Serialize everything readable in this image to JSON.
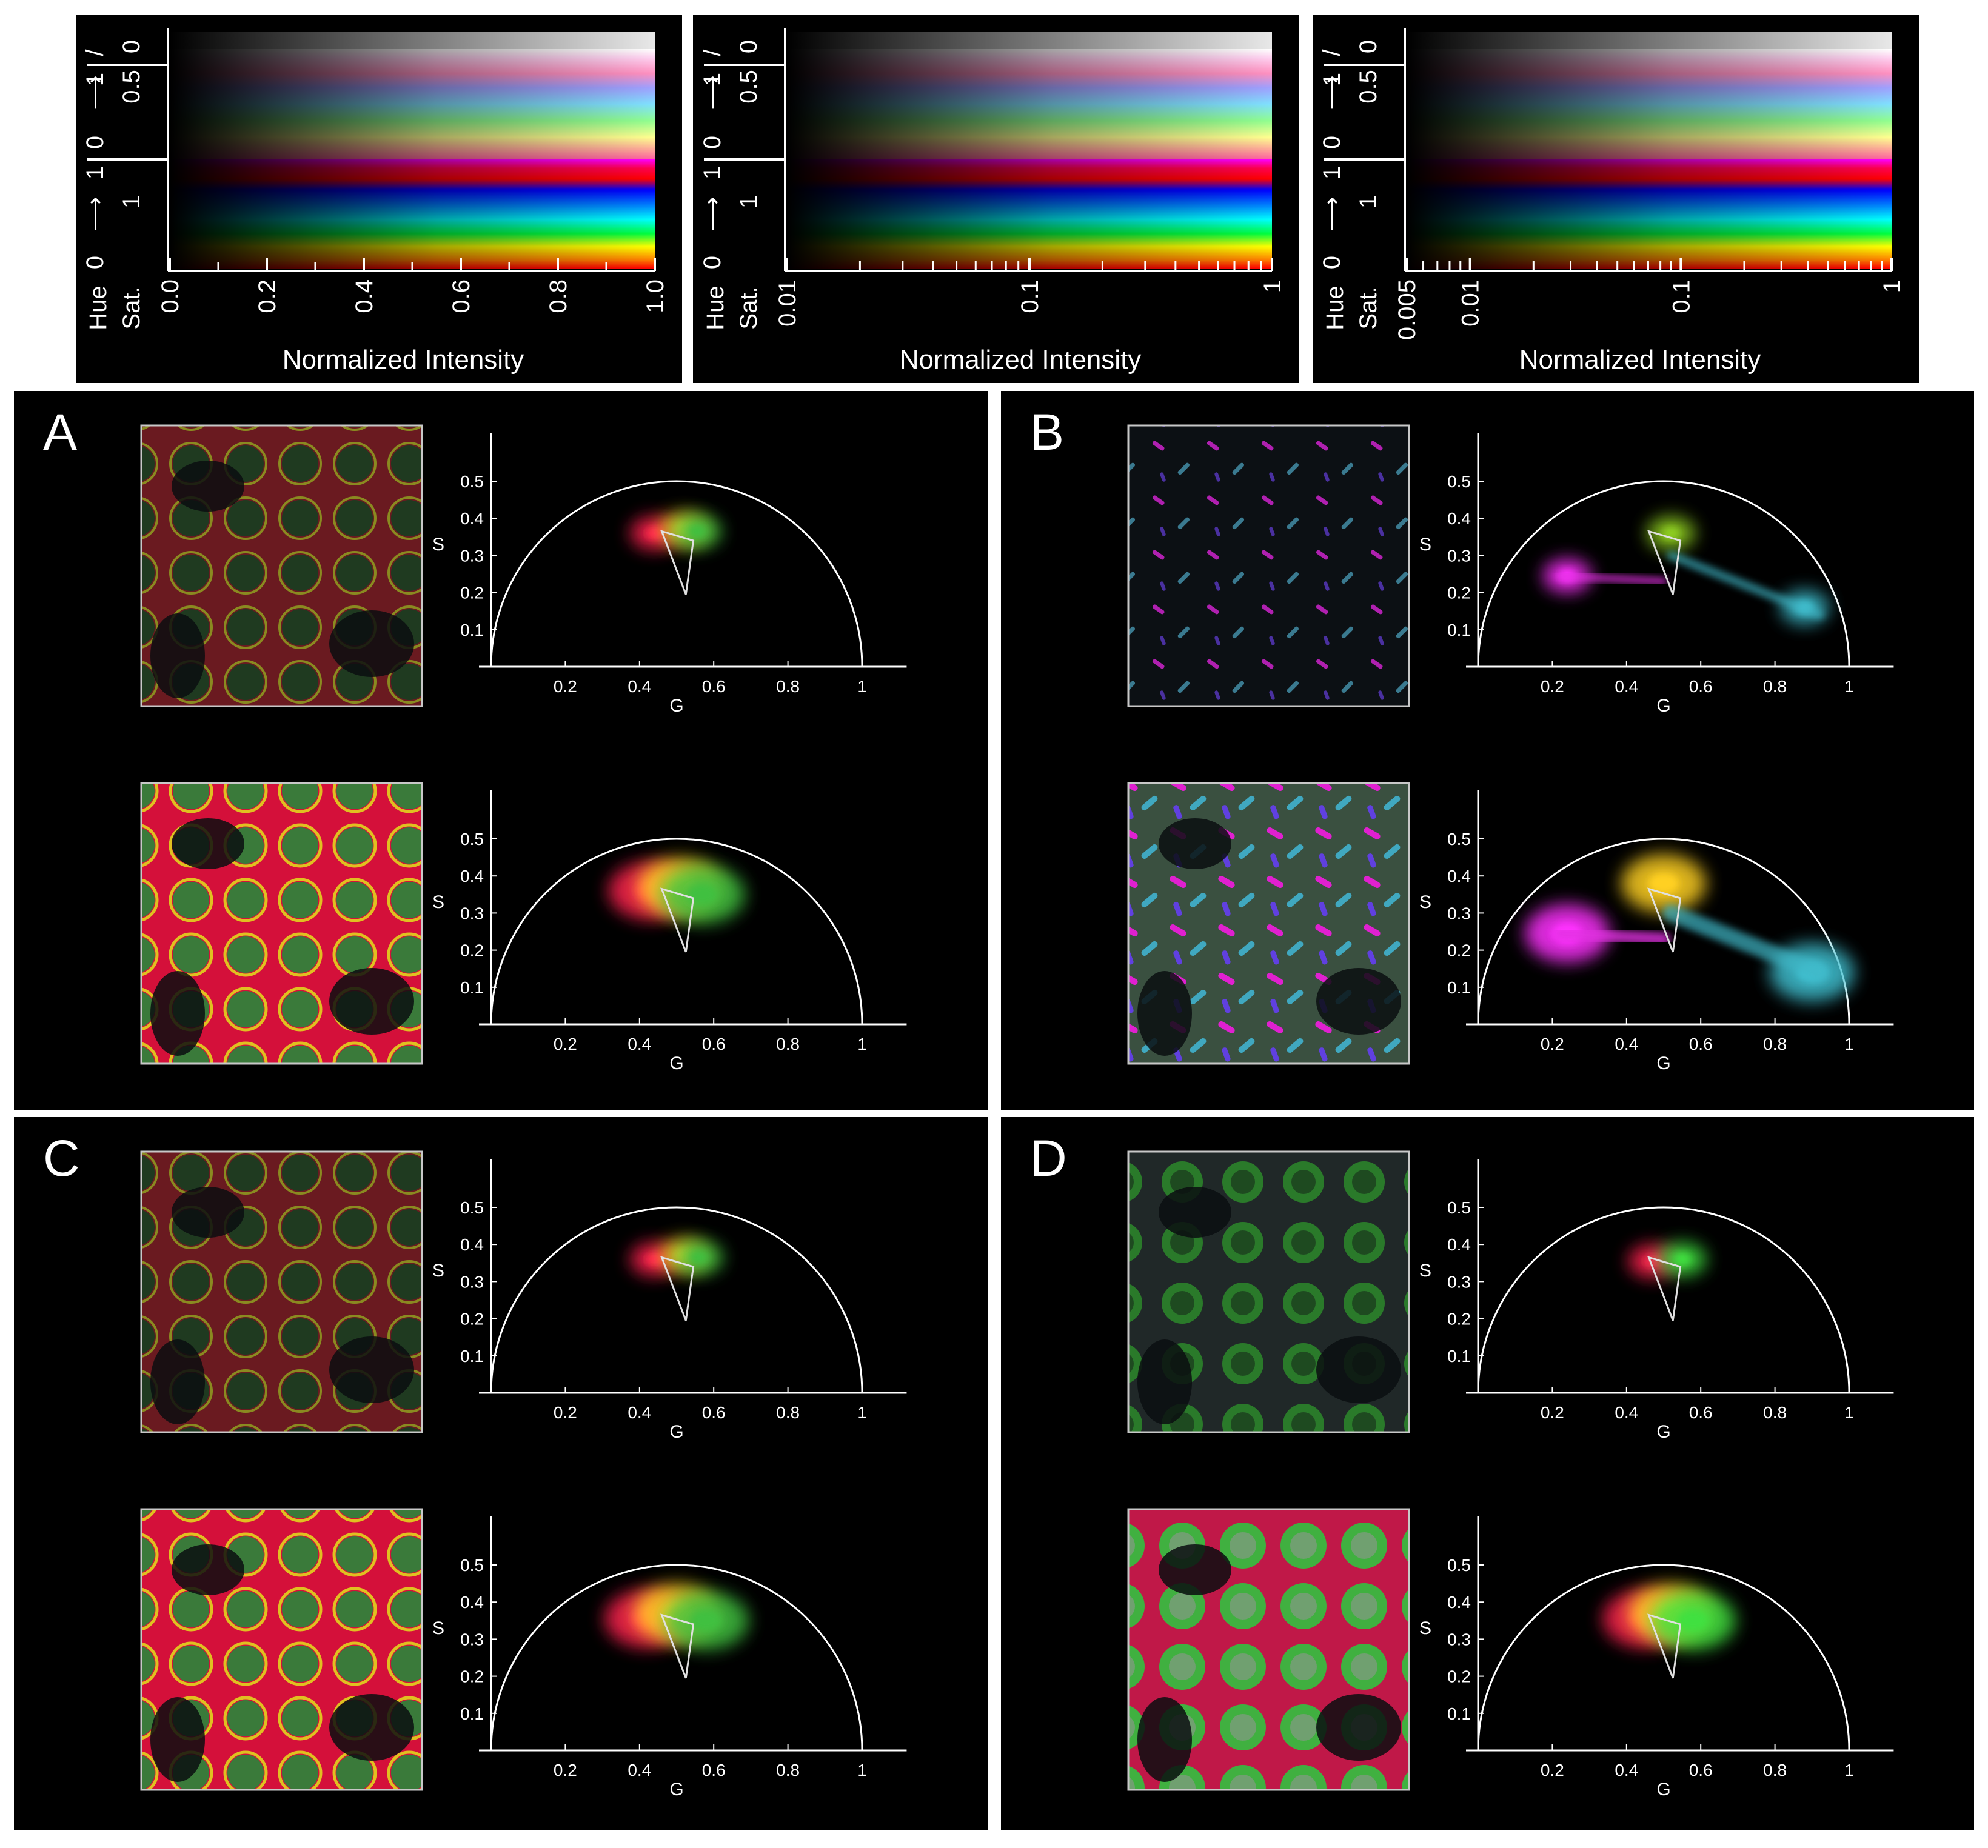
{
  "colormaps": [
    {
      "hue_label": "Hue",
      "sat_label": "Sat.",
      "hue_axis": [
        "0",
        "1",
        "0",
        "1"
      ],
      "sat_axis": [
        "1",
        "0.5",
        "0"
      ],
      "slash": "/",
      "xlabel": "Normalized Intensity",
      "scale": "linear",
      "ticks": [
        "0.0",
        "0.2",
        "0.4",
        "0.6",
        "0.8",
        "1.0"
      ],
      "tick_values": [
        0,
        0.2,
        0.4,
        0.6,
        0.8,
        1.0
      ],
      "xlim": [
        0,
        1
      ]
    },
    {
      "hue_label": "Hue",
      "sat_label": "Sat.",
      "hue_axis": [
        "0",
        "1",
        "0",
        "1"
      ],
      "sat_axis": [
        "1",
        "0.5",
        "0"
      ],
      "slash": "/",
      "xlabel": "Normalized Intensity",
      "scale": "log",
      "ticks": [
        "0.01",
        "0.1",
        "1"
      ],
      "tick_values": [
        0.01,
        0.1,
        1
      ],
      "xlim": [
        0.01,
        1
      ]
    },
    {
      "hue_label": "Hue",
      "sat_label": "Sat.",
      "hue_axis": [
        "0",
        "1",
        "0",
        "1"
      ],
      "sat_axis": [
        "1",
        "0.5",
        "0"
      ],
      "slash": "/",
      "xlabel": "Normalized Intensity",
      "scale": "log",
      "ticks": [
        "0.005",
        "0.01",
        "0.1",
        "1"
      ],
      "tick_values": [
        0.005,
        0.01,
        0.1,
        1
      ],
      "xlim": [
        0.005,
        1
      ]
    }
  ],
  "phasor_axes": {
    "xlabel": "G",
    "ylabel": "S",
    "xticks": [
      "0.2",
      "0.4",
      "0.6",
      "0.8",
      "1"
    ],
    "xtick_values": [
      0.2,
      0.4,
      0.6,
      0.8,
      1
    ],
    "yticks": [
      "0.1",
      "0.2",
      "0.3",
      "0.4",
      "0.5"
    ],
    "ytick_values": [
      0.1,
      0.2,
      0.3,
      0.4,
      0.5
    ],
    "semicircle": "universal circle, center (0.5,0), radius 0.5"
  },
  "panels": [
    {
      "letter": "A",
      "rows": [
        {
          "image": "cells-red-yellow-green-dim",
          "triangle": [
            [
              0.46,
              0.365
            ],
            [
              0.545,
              0.34
            ],
            [
              0.525,
              0.195
            ]
          ],
          "clusters": [
            {
              "g": 0.44,
              "s": 0.36,
              "color": "#ff2050"
            },
            {
              "g": 0.52,
              "s": 0.37,
              "color": "#ffd020"
            },
            {
              "g": 0.555,
              "s": 0.365,
              "color": "#40c040"
            }
          ]
        },
        {
          "image": "cells-red-yellow-green-bright",
          "triangle": [
            [
              0.46,
              0.365
            ],
            [
              0.545,
              0.34
            ],
            [
              0.525,
              0.195
            ]
          ],
          "clusters": [
            {
              "g": 0.43,
              "s": 0.36,
              "color": "#ff2050"
            },
            {
              "g": 0.51,
              "s": 0.37,
              "color": "#ffd020"
            },
            {
              "g": 0.57,
              "s": 0.35,
              "color": "#40c040"
            }
          ]
        }
      ]
    },
    {
      "letter": "B",
      "rows": [
        {
          "image": "sparse-magenta-cyan-dim",
          "triangle": [
            [
              0.46,
              0.365
            ],
            [
              0.545,
              0.34
            ],
            [
              0.525,
              0.195
            ]
          ],
          "clusters": [
            {
              "g": 0.24,
              "s": 0.245,
              "color": "#ff30ff"
            },
            {
              "g": 0.52,
              "s": 0.36,
              "color": "#90d020"
            },
            {
              "g": 0.88,
              "s": 0.16,
              "color": "#40c0d0"
            }
          ]
        },
        {
          "image": "dense-magenta-cyan-bright",
          "triangle": [
            [
              0.46,
              0.365
            ],
            [
              0.545,
              0.34
            ],
            [
              0.525,
              0.195
            ]
          ],
          "clusters": [
            {
              "g": 0.24,
              "s": 0.245,
              "color": "#ff30ff"
            },
            {
              "g": 0.5,
              "s": 0.38,
              "color": "#ffd020"
            },
            {
              "g": 0.9,
              "s": 0.14,
              "color": "#40c0d0"
            }
          ]
        }
      ]
    },
    {
      "letter": "C",
      "rows": [
        {
          "image": "cells-red-yellow-green-dim",
          "triangle": [
            [
              0.46,
              0.365
            ],
            [
              0.545,
              0.34
            ],
            [
              0.525,
              0.195
            ]
          ],
          "clusters": [
            {
              "g": 0.44,
              "s": 0.36,
              "color": "#ff2050"
            },
            {
              "g": 0.52,
              "s": 0.37,
              "color": "#ffd020"
            },
            {
              "g": 0.56,
              "s": 0.365,
              "color": "#40c040"
            }
          ]
        },
        {
          "image": "cells-red-yellow-green-bright",
          "triangle": [
            [
              0.46,
              0.365
            ],
            [
              0.545,
              0.34
            ],
            [
              0.525,
              0.195
            ]
          ],
          "clusters": [
            {
              "g": 0.42,
              "s": 0.355,
              "color": "#ff2050"
            },
            {
              "g": 0.5,
              "s": 0.37,
              "color": "#ffd020"
            },
            {
              "g": 0.58,
              "s": 0.35,
              "color": "#40c040"
            }
          ]
        }
      ]
    },
    {
      "letter": "D",
      "rows": [
        {
          "image": "cells-green-dim",
          "triangle": [
            [
              0.46,
              0.365
            ],
            [
              0.545,
              0.34
            ],
            [
              0.525,
              0.195
            ]
          ],
          "clusters": [
            {
              "g": 0.47,
              "s": 0.355,
              "color": "#ff2050"
            },
            {
              "g": 0.55,
              "s": 0.36,
              "color": "#40e040"
            }
          ]
        },
        {
          "image": "cells-green-bright",
          "triangle": [
            [
              0.46,
              0.365
            ],
            [
              0.545,
              0.34
            ],
            [
              0.525,
              0.195
            ]
          ],
          "clusters": [
            {
              "g": 0.45,
              "s": 0.355,
              "color": "#ff2050"
            },
            {
              "g": 0.52,
              "s": 0.37,
              "color": "#ffd020"
            },
            {
              "g": 0.58,
              "s": 0.35,
              "color": "#40e040"
            }
          ]
        }
      ]
    }
  ]
}
